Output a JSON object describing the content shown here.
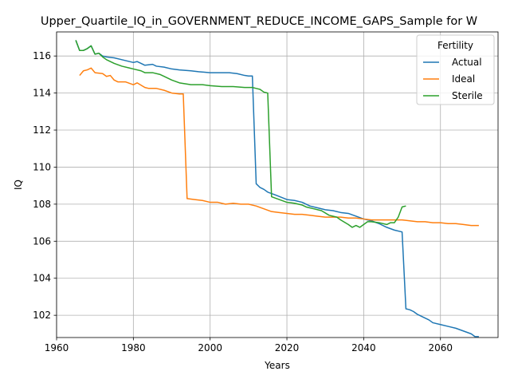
{
  "chart_data": {
    "type": "line",
    "title": "Upper_Quartile_IQ_in_GOVERNMENT_REDUCE_INCOME_GAPS_Sample for W",
    "xlabel": "Years",
    "ylabel": "IQ",
    "xlim": [
      1960,
      2075
    ],
    "ylim": [
      100.8,
      117.3
    ],
    "xticks": [
      1960,
      1980,
      2000,
      2020,
      2040,
      2060
    ],
    "yticks": [
      102,
      104,
      106,
      108,
      110,
      112,
      114,
      116
    ],
    "grid": true,
    "legend": {
      "title": "Fertility",
      "position": "top-right",
      "entries": [
        "Actual",
        "Ideal",
        "Sterile"
      ]
    },
    "series": [
      {
        "name": "Actual",
        "color": "#1f77b4",
        "points": [
          [
            1965,
            116.85
          ],
          [
            1966,
            116.3
          ],
          [
            1967,
            116.3
          ],
          [
            1968,
            116.4
          ],
          [
            1969,
            116.55
          ],
          [
            1970,
            116.1
          ],
          [
            1971,
            116.15
          ],
          [
            1972,
            116.0
          ],
          [
            1973,
            115.95
          ],
          [
            1975,
            115.9
          ],
          [
            1977,
            115.8
          ],
          [
            1980,
            115.65
          ],
          [
            1981,
            115.7
          ],
          [
            1982,
            115.6
          ],
          [
            1983,
            115.5
          ],
          [
            1985,
            115.55
          ],
          [
            1986,
            115.45
          ],
          [
            1988,
            115.4
          ],
          [
            1990,
            115.3
          ],
          [
            1992,
            115.25
          ],
          [
            1995,
            115.2
          ],
          [
            1997,
            115.15
          ],
          [
            2000,
            115.1
          ],
          [
            2003,
            115.1
          ],
          [
            2005,
            115.1
          ],
          [
            2007,
            115.05
          ],
          [
            2009,
            114.95
          ],
          [
            2010,
            114.92
          ],
          [
            2011,
            114.92
          ],
          [
            2012,
            109.1
          ],
          [
            2013,
            108.9
          ],
          [
            2014,
            108.8
          ],
          [
            2015,
            108.65
          ],
          [
            2017,
            108.5
          ],
          [
            2020,
            108.25
          ],
          [
            2022,
            108.2
          ],
          [
            2024,
            108.1
          ],
          [
            2026,
            107.9
          ],
          [
            2028,
            107.8
          ],
          [
            2030,
            107.7
          ],
          [
            2032,
            107.65
          ],
          [
            2034,
            107.55
          ],
          [
            2036,
            107.5
          ],
          [
            2038,
            107.35
          ],
          [
            2040,
            107.2
          ],
          [
            2042,
            107.1
          ],
          [
            2044,
            106.95
          ],
          [
            2046,
            106.75
          ],
          [
            2048,
            106.6
          ],
          [
            2050,
            106.5
          ],
          [
            2051,
            102.35
          ],
          [
            2052,
            102.3
          ],
          [
            2053,
            102.2
          ],
          [
            2054,
            102.05
          ],
          [
            2055,
            101.95
          ],
          [
            2057,
            101.75
          ],
          [
            2058,
            101.6
          ],
          [
            2060,
            101.5
          ],
          [
            2062,
            101.4
          ],
          [
            2064,
            101.3
          ],
          [
            2066,
            101.15
          ],
          [
            2068,
            101.0
          ],
          [
            2069,
            100.85
          ],
          [
            2070,
            100.85
          ]
        ]
      },
      {
        "name": "Ideal",
        "color": "#ff7f0e",
        "points": [
          [
            1966,
            114.95
          ],
          [
            1967,
            115.2
          ],
          [
            1968,
            115.25
          ],
          [
            1969,
            115.35
          ],
          [
            1970,
            115.1
          ],
          [
            1972,
            115.05
          ],
          [
            1973,
            114.9
          ],
          [
            1974,
            114.95
          ],
          [
            1975,
            114.7
          ],
          [
            1976,
            114.6
          ],
          [
            1978,
            114.6
          ],
          [
            1980,
            114.45
          ],
          [
            1981,
            114.55
          ],
          [
            1983,
            114.3
          ],
          [
            1984,
            114.25
          ],
          [
            1986,
            114.25
          ],
          [
            1988,
            114.15
          ],
          [
            1990,
            114.0
          ],
          [
            1992,
            113.95
          ],
          [
            1993,
            113.95
          ],
          [
            1994,
            108.3
          ],
          [
            1996,
            108.25
          ],
          [
            1998,
            108.2
          ],
          [
            2000,
            108.1
          ],
          [
            2002,
            108.1
          ],
          [
            2004,
            108.0
          ],
          [
            2006,
            108.05
          ],
          [
            2008,
            108.0
          ],
          [
            2010,
            108.0
          ],
          [
            2012,
            107.9
          ],
          [
            2014,
            107.75
          ],
          [
            2016,
            107.6
          ],
          [
            2018,
            107.55
          ],
          [
            2020,
            107.5
          ],
          [
            2022,
            107.45
          ],
          [
            2024,
            107.45
          ],
          [
            2026,
            107.4
          ],
          [
            2028,
            107.35
          ],
          [
            2030,
            107.3
          ],
          [
            2032,
            107.3
          ],
          [
            2034,
            107.3
          ],
          [
            2036,
            107.25
          ],
          [
            2038,
            107.25
          ],
          [
            2040,
            107.2
          ],
          [
            2042,
            107.15
          ],
          [
            2044,
            107.15
          ],
          [
            2046,
            107.15
          ],
          [
            2048,
            107.15
          ],
          [
            2050,
            107.15
          ],
          [
            2052,
            107.1
          ],
          [
            2054,
            107.05
          ],
          [
            2056,
            107.05
          ],
          [
            2058,
            107.0
          ],
          [
            2060,
            107.0
          ],
          [
            2062,
            106.95
          ],
          [
            2064,
            106.95
          ],
          [
            2066,
            106.9
          ],
          [
            2068,
            106.85
          ],
          [
            2070,
            106.85
          ]
        ]
      },
      {
        "name": "Sterile",
        "color": "#2ca02c",
        "points": [
          [
            1965,
            116.85
          ],
          [
            1966,
            116.3
          ],
          [
            1967,
            116.3
          ],
          [
            1968,
            116.4
          ],
          [
            1969,
            116.55
          ],
          [
            1970,
            116.1
          ],
          [
            1971,
            116.15
          ],
          [
            1972,
            115.95
          ],
          [
            1973,
            115.8
          ],
          [
            1975,
            115.6
          ],
          [
            1977,
            115.45
          ],
          [
            1979,
            115.35
          ],
          [
            1980,
            115.3
          ],
          [
            1982,
            115.2
          ],
          [
            1983,
            115.1
          ],
          [
            1985,
            115.1
          ],
          [
            1987,
            115.0
          ],
          [
            1988,
            114.9
          ],
          [
            1990,
            114.7
          ],
          [
            1992,
            114.55
          ],
          [
            1995,
            114.45
          ],
          [
            1998,
            114.45
          ],
          [
            2000,
            114.4
          ],
          [
            2003,
            114.35
          ],
          [
            2006,
            114.35
          ],
          [
            2009,
            114.3
          ],
          [
            2011,
            114.3
          ],
          [
            2012,
            114.25
          ],
          [
            2013,
            114.2
          ],
          [
            2014,
            114.05
          ],
          [
            2015,
            114.0
          ],
          [
            2016,
            108.4
          ],
          [
            2018,
            108.25
          ],
          [
            2020,
            108.1
          ],
          [
            2022,
            108.05
          ],
          [
            2024,
            107.95
          ],
          [
            2025,
            107.85
          ],
          [
            2027,
            107.75
          ],
          [
            2029,
            107.65
          ],
          [
            2031,
            107.4
          ],
          [
            2033,
            107.3
          ],
          [
            2034,
            107.15
          ],
          [
            2036,
            106.9
          ],
          [
            2037,
            106.75
          ],
          [
            2038,
            106.85
          ],
          [
            2039,
            106.75
          ],
          [
            2041,
            107.05
          ],
          [
            2042,
            107.05
          ],
          [
            2044,
            107.0
          ],
          [
            2046,
            106.9
          ],
          [
            2047,
            107.0
          ],
          [
            2048,
            107.0
          ],
          [
            2049,
            107.3
          ],
          [
            2050,
            107.85
          ],
          [
            2051,
            107.9
          ]
        ]
      }
    ]
  }
}
